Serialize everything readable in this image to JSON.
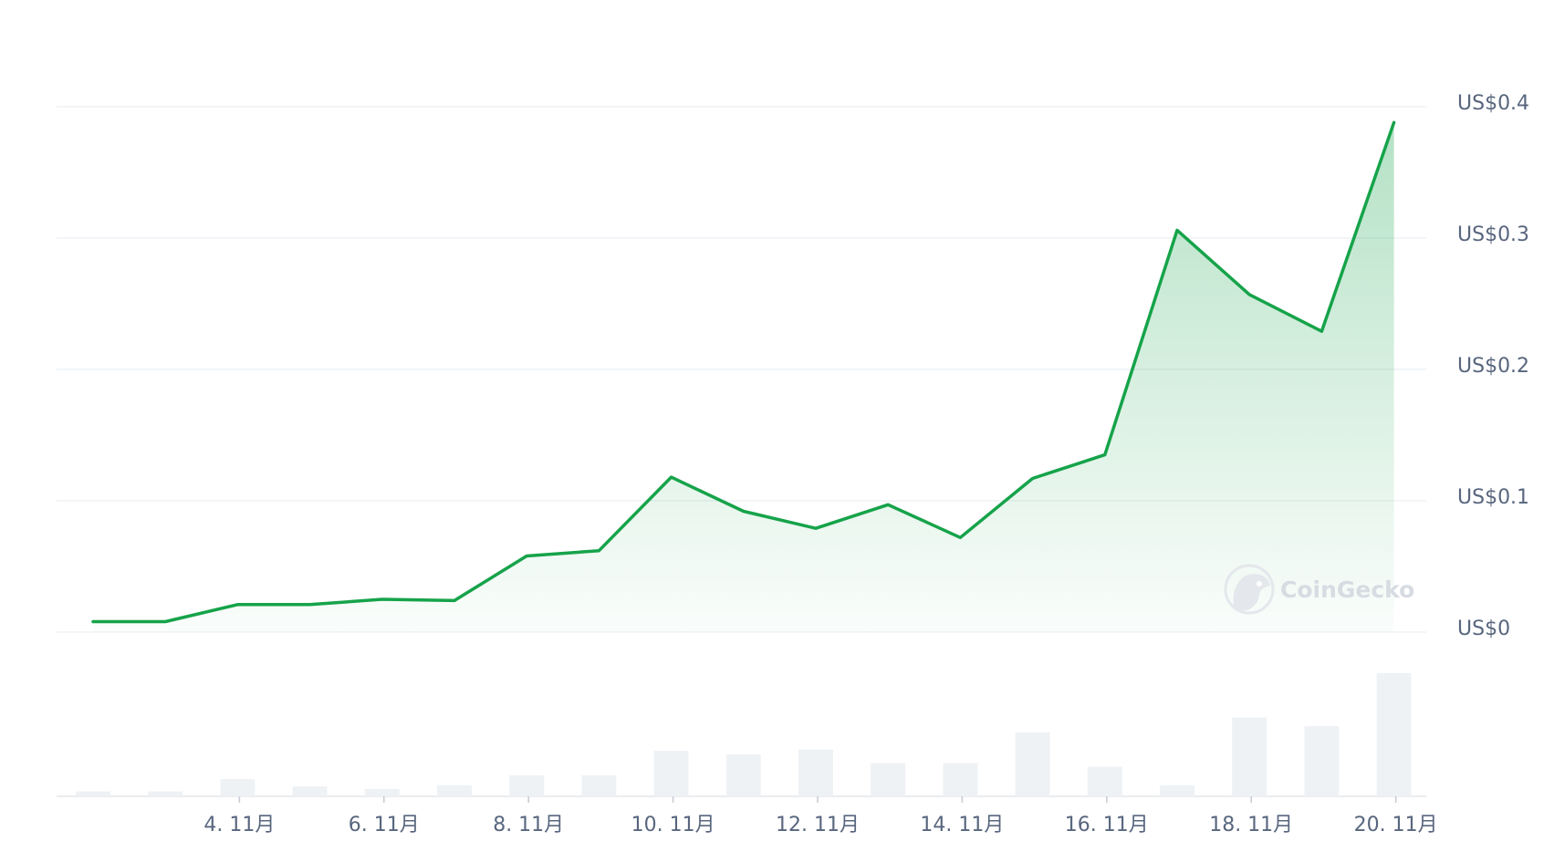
{
  "chart_data": {
    "type": "line",
    "price_series": {
      "x": [
        "2. 11月",
        "3. 11月",
        "4. 11月",
        "5. 11月",
        "6. 11月",
        "7. 11月",
        "8. 11月",
        "9. 11月",
        "10. 11月",
        "11. 11月",
        "12. 11月",
        "13. 11月",
        "14. 11月",
        "15. 11月",
        "16. 11月",
        "17. 11月",
        "18. 11月",
        "19. 11月",
        "20. 11月"
      ],
      "values": [
        0.008,
        0.008,
        0.021,
        0.021,
        0.025,
        0.024,
        0.058,
        0.062,
        0.118,
        0.092,
        0.079,
        0.097,
        0.072,
        0.117,
        0.135,
        0.306,
        0.257,
        0.229,
        0.388
      ],
      "color": "#16a34a"
    },
    "volume_series": {
      "values": [
        4,
        4,
        14,
        8,
        6,
        9,
        17,
        17,
        37,
        34,
        38,
        27,
        27,
        52,
        24,
        9,
        64,
        57,
        100
      ],
      "color": "#eff2f5"
    },
    "y_ticks": [
      {
        "value": 0,
        "label": "US$0"
      },
      {
        "value": 0.1,
        "label": "US$0.1"
      },
      {
        "value": 0.2,
        "label": "US$0.2"
      },
      {
        "value": 0.3,
        "label": "US$0.3"
      },
      {
        "value": 0.4,
        "label": "US$0.4"
      }
    ],
    "x_ticks": [
      "4. 11月",
      "6. 11月",
      "8. 11月",
      "10. 11月",
      "12. 11月",
      "14. 11月",
      "16. 11月",
      "18. 11月",
      "20. 11月"
    ],
    "ylim": [
      0,
      0.4
    ],
    "grid": true,
    "title": "",
    "xlabel": "",
    "ylabel": ""
  },
  "watermark": {
    "text": "CoinGecko",
    "icon": "gecko-logo-icon"
  },
  "colors": {
    "line": "#16a34a",
    "area_top": "#16a34a",
    "grid": "#eff2f5",
    "axis_text": "#58667e",
    "volume_bar": "#eff2f5"
  }
}
